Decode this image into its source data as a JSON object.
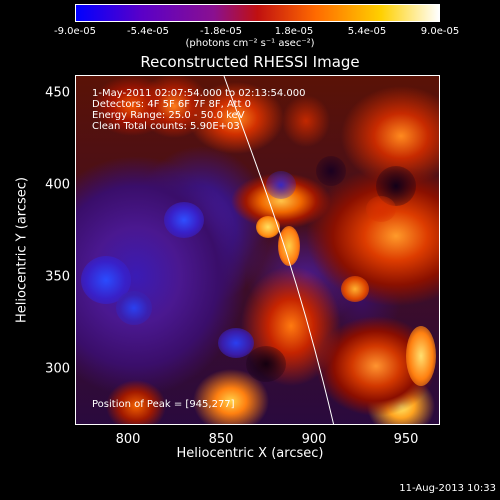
{
  "colorbar": {
    "ticks": [
      "-9.0e-05",
      "-5.4e-05",
      "-1.8e-05",
      "1.8e-05",
      "5.4e-05",
      "9.0e-05"
    ],
    "units_label": "(photons cm⁻² s⁻¹ asec⁻²)",
    "colors": [
      "#0000ff",
      "#5a00c8",
      "#8a1090",
      "#c01010",
      "#ff6a00",
      "#ffd000",
      "#ffffff"
    ]
  },
  "plot": {
    "title": "Reconstructed RHESSI Image",
    "annotation": {
      "time_range": "1-May-2011 02:07:54.000 to 02:13:54.000",
      "detectors": "Detectors: 4F 5F 6F 7F 8F, Att 0",
      "energy": "Energy Range: 25.0 - 50.0 keV",
      "clean": "Clean    Total counts: 5.90E+03"
    },
    "peak_label": "Position of Peak = [945,277]",
    "x_axis": {
      "label": "Heliocentric X (arcsec)",
      "ticks": [
        "800",
        "850",
        "900",
        "950"
      ]
    },
    "y_axis": {
      "label": "Heliocentric Y (arcsec)",
      "ticks": [
        "450",
        "400",
        "350",
        "300"
      ]
    }
  },
  "timestamp": "11-Aug-2013 10:33"
}
